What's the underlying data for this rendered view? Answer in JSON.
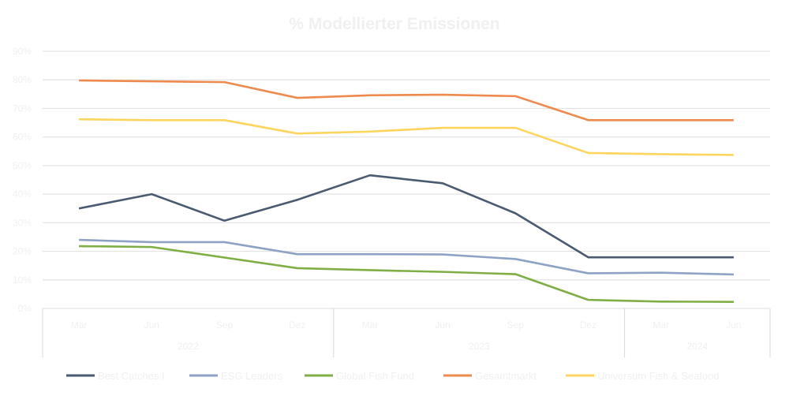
{
  "chart_data": {
    "type": "line",
    "title": "% Modellierter Emissionen",
    "xlabel": "",
    "ylabel": "",
    "ylim": [
      0,
      90
    ],
    "y_ticks": [
      "0%",
      "10%",
      "20%",
      "30%",
      "40%",
      "50%",
      "60%",
      "70%",
      "80%",
      "90%"
    ],
    "categories": [
      "Mär",
      "Jun",
      "Sep",
      "Dez",
      "Mär",
      "Jun",
      "Sep",
      "Dez",
      "Mär",
      "Jun"
    ],
    "year_groups": [
      {
        "label": "2022",
        "count": 4
      },
      {
        "label": "2023",
        "count": 4
      },
      {
        "label": "2024",
        "count": 2
      }
    ],
    "grid": true,
    "legend_position": "bottom",
    "series": [
      {
        "name": "Best Catches I",
        "color": "#4a5a70",
        "values": [
          35,
          40,
          30.7,
          38,
          46.6,
          43.8,
          33.3,
          17.9,
          17.9,
          17.9
        ]
      },
      {
        "name": "ESG Leaders",
        "color": "#8ea2c6",
        "values": [
          24,
          23.2,
          23.2,
          19,
          19,
          18.9,
          17.3,
          12.3,
          12.5,
          11.9
        ]
      },
      {
        "name": "Global Fish Fund",
        "color": "#7fae45",
        "values": [
          21.8,
          21.5,
          17.8,
          14.1,
          13.4,
          12.8,
          12,
          3,
          2.4,
          2.3
        ]
      },
      {
        "name": "Gesamtmarkt",
        "color": "#ee8a4e",
        "values": [
          79.8,
          79.5,
          79.2,
          73.7,
          74.6,
          74.8,
          74.3,
          65.9,
          65.9,
          65.9
        ]
      },
      {
        "name": "Universum Fish & Seafood",
        "color": "#fdd55e",
        "values": [
          66.2,
          65.9,
          65.9,
          61.2,
          61.9,
          63.2,
          63.2,
          54.4,
          54,
          53.7
        ]
      }
    ]
  }
}
